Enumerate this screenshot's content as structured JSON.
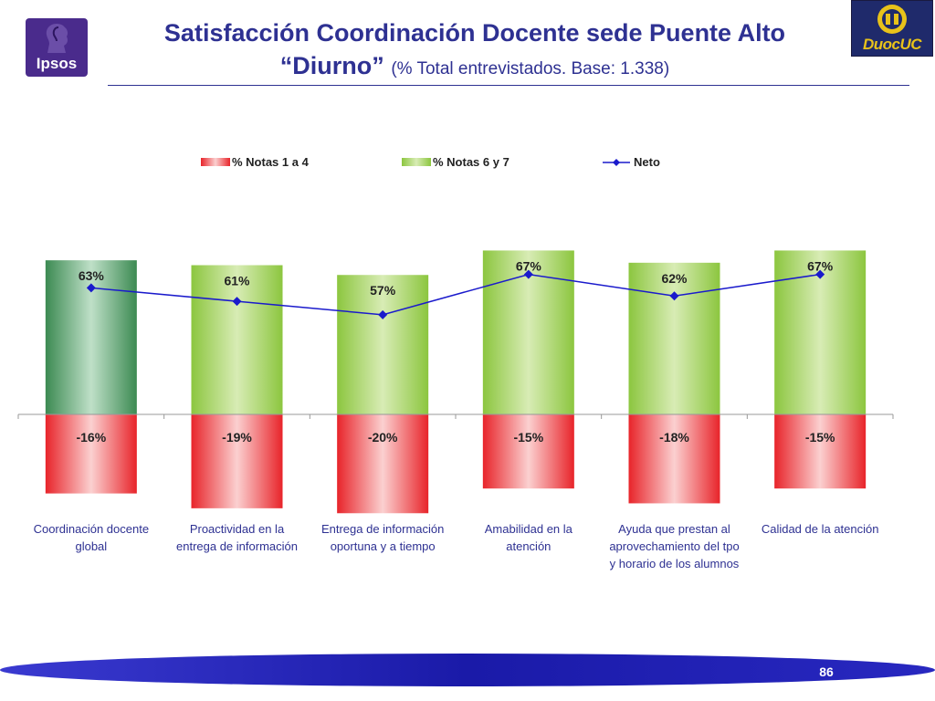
{
  "header": {
    "title_line1": "Satisfacción Coordinación Docente sede Puente Alto",
    "title_line2": "“Diurno”",
    "title_sub": "(% Total entrevistados. Base: 1.338)",
    "ipsos_logo_text": "Ipsos",
    "duoc_logo_text": "DuocUC"
  },
  "footer": {
    "page_number": "86"
  },
  "colors": {
    "title": "#2e3192",
    "negative": "#e8242a",
    "positive": "#8cc63f",
    "highlight": "#3c8a52",
    "line": "#1a1acc"
  },
  "chart_data": {
    "type": "bar",
    "categories": [
      [
        "Coordinación docente",
        "global"
      ],
      [
        "Proactividad en la",
        "entrega de información"
      ],
      [
        "Entrega de información",
        "oportuna y  a tiempo"
      ],
      [
        "Amabilidad en la",
        "atención"
      ],
      [
        "Ayuda que prestan al",
        "aprovechamiento del tpo",
        "y horario de los alumnos"
      ],
      [
        "Calidad de la atención"
      ]
    ],
    "series": [
      {
        "name": "% Notas 1 a 4",
        "values": [
          -16,
          -19,
          -20,
          -15,
          -18,
          -15
        ],
        "labels": [
          "-16%",
          "-19%",
          "-20%",
          "-15%",
          "-18%",
          "-15%"
        ]
      },
      {
        "name": "% Notas 6 y 7",
        "values": [
          63,
          61,
          57,
          67,
          62,
          67
        ],
        "labels": [
          "63%",
          "61%",
          "57%",
          "67%",
          "62%",
          "67%"
        ]
      },
      {
        "name": "Neto",
        "type": "line",
        "values": [
          47,
          42,
          37,
          52,
          44,
          52
        ]
      }
    ],
    "highlight_index": 0,
    "legend_position": "top"
  }
}
